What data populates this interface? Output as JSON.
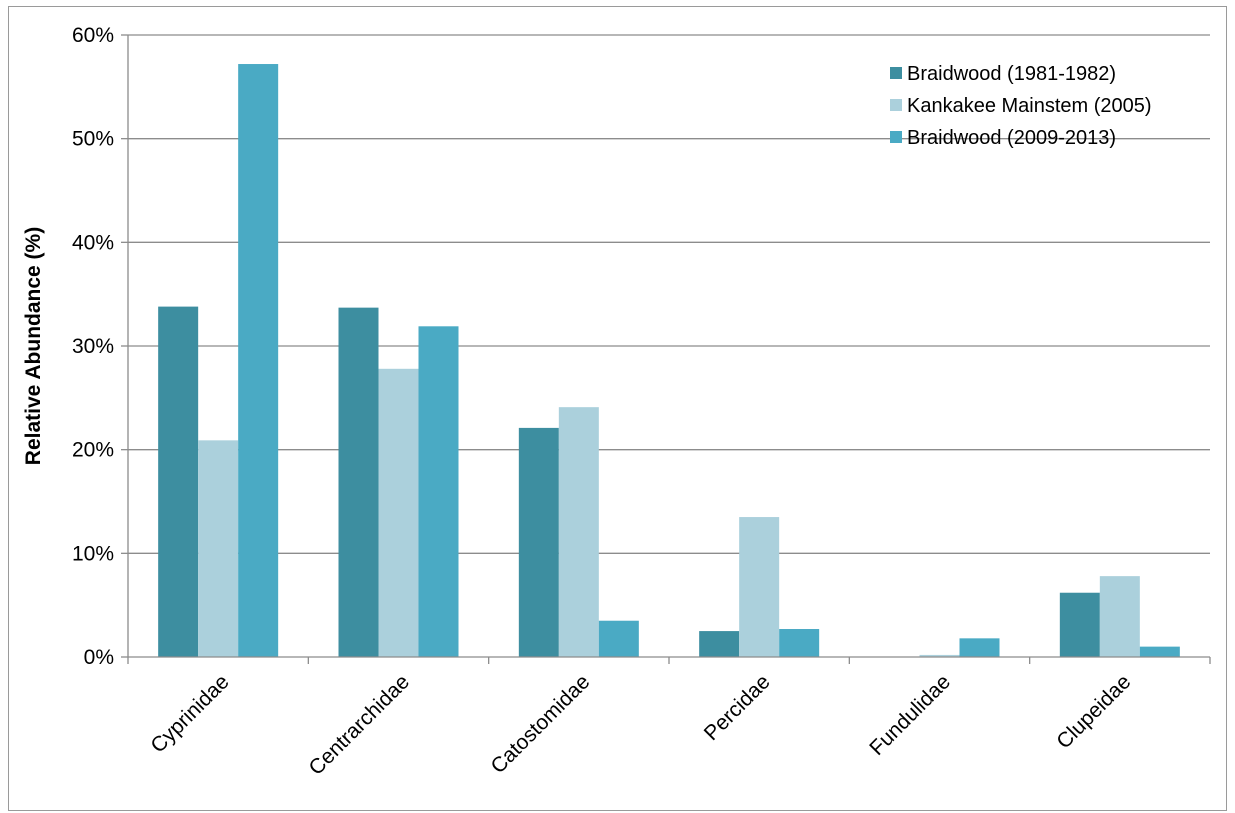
{
  "chart_data": {
    "type": "bar",
    "title": "",
    "xlabel": "",
    "ylabel": "Relative Abundance (%)",
    "ylim": [
      0,
      60
    ],
    "yticks": [
      "0%",
      "10%",
      "20%",
      "30%",
      "40%",
      "50%",
      "60%"
    ],
    "ytick_values": [
      0,
      10,
      20,
      30,
      40,
      50,
      60
    ],
    "grid": true,
    "legend_position": "top-right",
    "categories": [
      "Cyprinidae",
      "Centrarchidae",
      "Catostomidae",
      "Percidae",
      "Fundulidae",
      "Clupeidae"
    ],
    "series": [
      {
        "name": "Braidwood (1981-1982)",
        "color": "#3d8ea0",
        "values": [
          33.8,
          33.7,
          22.1,
          2.5,
          0,
          6.2
        ]
      },
      {
        "name": "Kankakee Mainstem (2005)",
        "color": "#abd0dc",
        "values": [
          20.9,
          27.8,
          24.1,
          13.5,
          0.2,
          7.8
        ]
      },
      {
        "name": "Braidwood (2009-2013)",
        "color": "#4aaac4",
        "values": [
          57.2,
          31.9,
          3.5,
          2.7,
          1.8,
          1.0
        ]
      }
    ]
  }
}
